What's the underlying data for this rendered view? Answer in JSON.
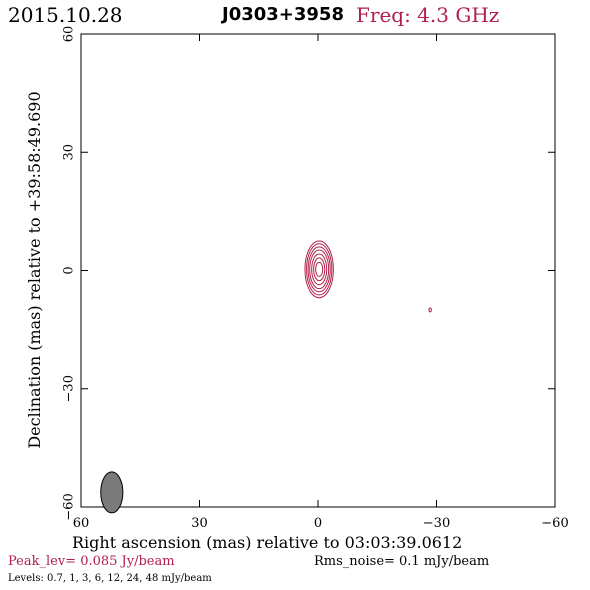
{
  "header": {
    "date": "2015.10.28",
    "source": "J0303+3958",
    "frequency": "Freq: 4.3 GHz"
  },
  "footer": {
    "peak": "Peak_lev=  0.085 Jy/beam",
    "rms": "Rms_noise=   0.1 mJy/beam",
    "levels": "Levels: 0.7,    1,    3,    6,   12,   24,   48 mJy/beam"
  },
  "chart_data": {
    "type": "contour",
    "title": "J0303+3958",
    "xlabel": "Right ascension (mas) relative to 03:03:39.0612",
    "ylabel": "Declination (mas) relative to +39:58:49.690",
    "xlim": [
      60,
      -60
    ],
    "ylim": [
      -60,
      60
    ],
    "x_ticks": [
      60,
      30,
      0,
      -30,
      -60
    ],
    "y_ticks": [
      -60,
      -30,
      0,
      30,
      60
    ],
    "x_tick_labels": [
      "60",
      "30",
      "0",
      "−30",
      "−60"
    ],
    "y_tick_labels": [
      "−60",
      "−30",
      "0",
      "30",
      "60"
    ],
    "grid": false,
    "peak_jy_per_beam": 0.085,
    "rms_noise_mjy_per_beam": 0.1,
    "contour_levels_mjy_per_beam": [
      0.7,
      1,
      3,
      6,
      12,
      24,
      48
    ],
    "components": [
      {
        "ra_mas": -0.3,
        "dec_mas": 0.3,
        "contours": [
          {
            "level": 0.7,
            "half_width_mas": 3.6,
            "half_height_mas": 7.2
          },
          {
            "level": 1,
            "half_width_mas": 3.2,
            "half_height_mas": 6.5
          },
          {
            "level": 3,
            "half_width_mas": 2.8,
            "half_height_mas": 5.7
          },
          {
            "level": 6,
            "half_width_mas": 2.4,
            "half_height_mas": 4.9
          },
          {
            "level": 12,
            "half_width_mas": 1.9,
            "half_height_mas": 3.9
          },
          {
            "level": 24,
            "half_width_mas": 1.4,
            "half_height_mas": 2.9
          },
          {
            "level": 48,
            "half_width_mas": 0.9,
            "half_height_mas": 1.8
          }
        ]
      },
      {
        "ra_mas": -28.4,
        "dec_mas": -10,
        "contours": [
          {
            "level": 0.7,
            "half_width_mas": 0.3,
            "half_height_mas": 0.5
          }
        ]
      }
    ],
    "beam": {
      "ra_mas": 52.2,
      "dec_mas": -56.3,
      "major_mas": 5.2,
      "minor_mas": 2.8,
      "pa_deg": 0,
      "color": "#7a7a7a"
    },
    "colors": {
      "contour": "#b0204a",
      "axes": "#000000"
    }
  }
}
